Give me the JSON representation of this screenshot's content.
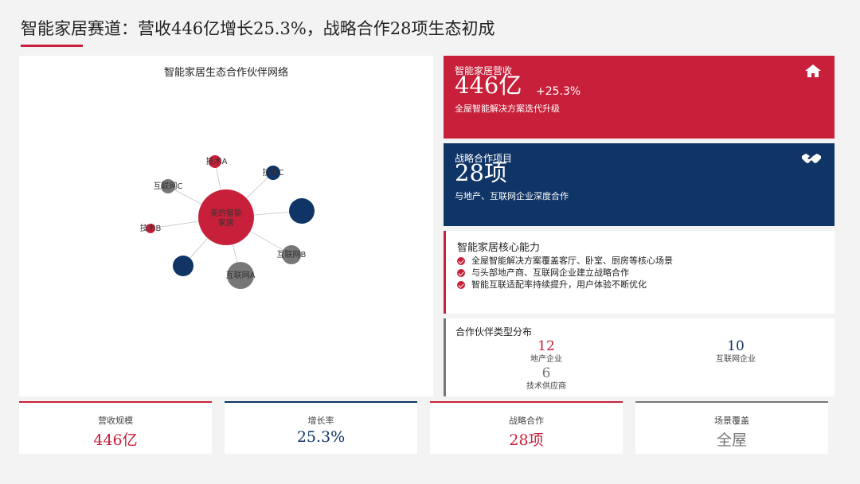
{
  "header": {
    "title": "智能家居赛道：营收446亿增长25.3%，战略合作28项生态初成"
  },
  "network": {
    "title": "智能家居生态合作伙伴网络",
    "center": {
      "label_line1": "美的智能",
      "label_line2": "家居"
    },
    "nodes": [
      {
        "label": "技术A",
        "color": "#c8203a"
      },
      {
        "label": "技术C",
        "color": "#0f3566"
      },
      {
        "label": "",
        "color": "#0f3566"
      },
      {
        "label": "互联网B",
        "color": "#777777"
      },
      {
        "label": "互联网A",
        "color": "#777777"
      },
      {
        "label": "",
        "color": "#0f3566"
      },
      {
        "label": "技术B",
        "color": "#c8203a"
      },
      {
        "label": "互联网C",
        "color": "#777777"
      }
    ]
  },
  "revenue_card": {
    "label": "智能家居营收",
    "value": "446亿",
    "growth": "+25.3%",
    "subtitle": "全屋智能解决方案迭代升级",
    "icon": "home-icon"
  },
  "partner_card": {
    "label": "战略合作项目",
    "value": "28项",
    "subtitle": "与地产、互联网企业深度合作",
    "icon": "handshake-icon"
  },
  "capabilities": {
    "title": "智能家居核心能力",
    "items": [
      "全屋智能解决方案覆盖客厅、卧室、厨房等核心场景",
      "与头部地产商、互联网企业建立战略合作",
      "智能互联适配率持续提升，用户体验不断优化"
    ]
  },
  "distribution": {
    "title": "合作伙伴类型分布",
    "items": [
      {
        "value": "12",
        "label": "地产企业",
        "color": "#c8203a"
      },
      {
        "value": "10",
        "label": "互联网企业",
        "color": "#0f3566"
      },
      {
        "value": "6",
        "label": "技术供应商",
        "color": "#777777"
      }
    ]
  },
  "kpis": [
    {
      "label": "营收规模",
      "value": "446亿",
      "color": "#c8203a"
    },
    {
      "label": "增长率",
      "value": "25.3%",
      "color": "#0f3566"
    },
    {
      "label": "战略合作",
      "value": "28项",
      "color": "#c8203a"
    },
    {
      "label": "场景覆盖",
      "value": "全屋",
      "color": "#777777"
    }
  ]
}
